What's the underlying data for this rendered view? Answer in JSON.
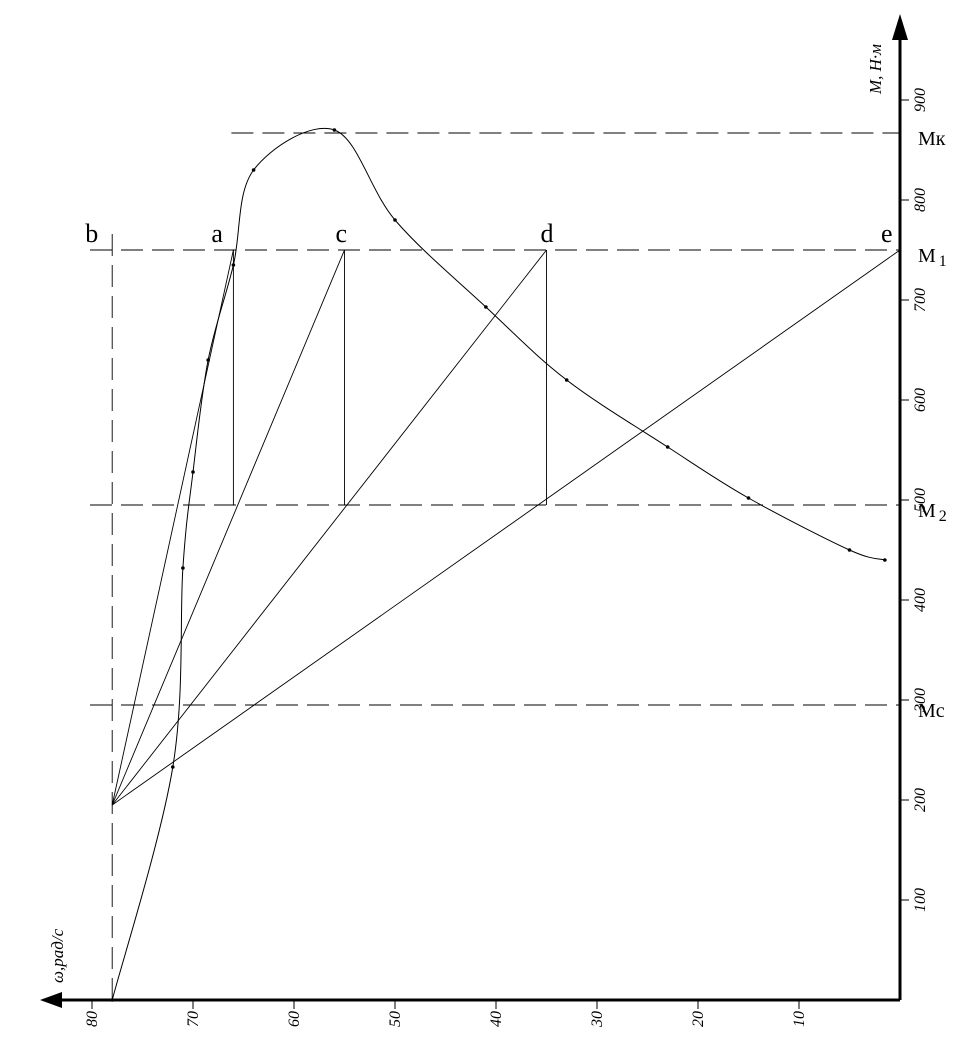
{
  "chart_data": {
    "type": "line",
    "title": "",
    "xlabel": "ω,рад/с",
    "ylabel": "M, Н·м",
    "x_axis_reversed": true,
    "x_axis_position": "bottom",
    "y_axis_position": "right",
    "x_ticks": [
      80,
      70,
      60,
      50,
      40,
      30,
      20,
      10
    ],
    "y_ticks": [
      100,
      200,
      300,
      400,
      500,
      600,
      700,
      800,
      900
    ],
    "xlim": [
      0,
      86
    ],
    "ylim": [
      0,
      960
    ],
    "grid": false,
    "legend": "none",
    "series": [
      {
        "style": "curve-with-dots",
        "points": [
          [
            78,
            0
          ],
          [
            72,
            233
          ],
          [
            71,
            432
          ],
          [
            70,
            528
          ],
          [
            68.5,
            640
          ],
          [
            66,
            735
          ],
          [
            64,
            830
          ],
          [
            56,
            870
          ],
          [
            50,
            780
          ],
          [
            41,
            693
          ],
          [
            33,
            620
          ],
          [
            23,
            553
          ],
          [
            15,
            502
          ],
          [
            5,
            450
          ],
          [
            1.5,
            440
          ]
        ]
      }
    ],
    "reference_lines": [
      {
        "label": "Мк",
        "y": 867,
        "x_from": 66,
        "x_to": 0,
        "style": "dashed"
      },
      {
        "label": "M",
        "sub": "1",
        "y": 750,
        "x_from": 80,
        "x_to": 0,
        "style": "dashed"
      },
      {
        "label": "M",
        "sub": "2",
        "y": 495,
        "x_from": 80,
        "x_to": 0,
        "style": "dashed"
      },
      {
        "label": "Мс",
        "y": 295,
        "x_from": 80,
        "x_to": 0,
        "style": "dashed"
      }
    ],
    "vertical_dashed_line": {
      "x": 78,
      "y_from": 0,
      "y_to": 770
    },
    "construction_lines": [
      {
        "from": [
          78,
          195
        ],
        "to": [
          66,
          750
        ]
      },
      {
        "from": [
          78,
          195
        ],
        "to": [
          55,
          750
        ]
      },
      {
        "from": [
          78,
          195
        ],
        "to": [
          35,
          750
        ]
      },
      {
        "from": [
          78,
          195
        ],
        "to": [
          0,
          750
        ]
      }
    ],
    "vertical_segments": [
      {
        "x": 66,
        "y_from": 495,
        "y_to": 750
      },
      {
        "x": 55,
        "y_from": 495,
        "y_to": 750
      },
      {
        "x": 35,
        "y_from": 495,
        "y_to": 750
      }
    ],
    "point_labels": [
      {
        "text": "b",
        "x": 78,
        "y": 750
      },
      {
        "text": "a",
        "x": 66,
        "y": 750
      },
      {
        "text": "c",
        "x": 55,
        "y": 750
      },
      {
        "text": "d",
        "x": 35,
        "y": 750
      },
      {
        "text": "e",
        "x": 0,
        "y": 750
      }
    ]
  }
}
